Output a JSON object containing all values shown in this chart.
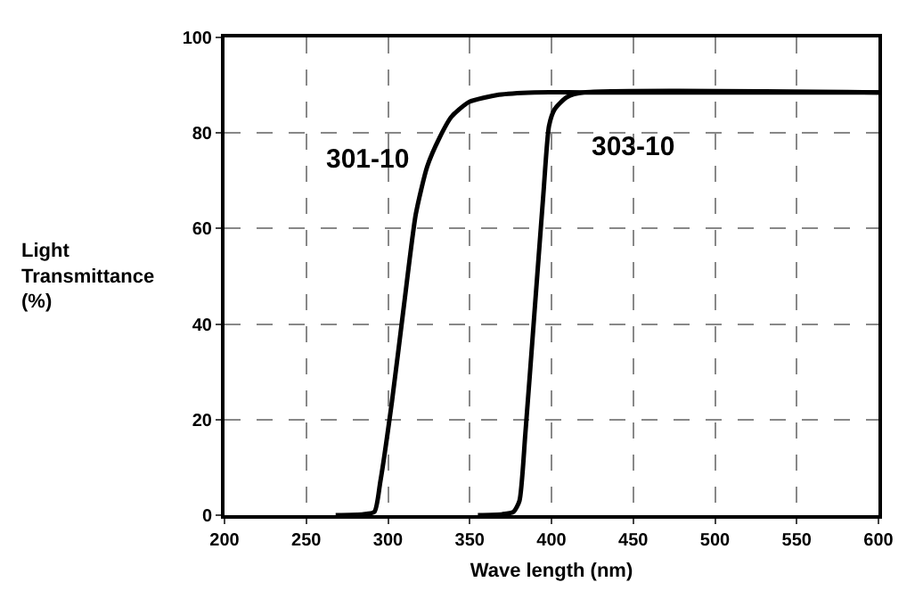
{
  "chart_data": {
    "type": "line",
    "xlabel": "Wave length (nm)",
    "ylabel": "Light\nTransmittance\n(%)",
    "xlim": [
      200,
      600
    ],
    "xticks": [
      200,
      250,
      300,
      350,
      400,
      450,
      500,
      550,
      600
    ],
    "ylim": [
      0,
      100
    ],
    "yticks": [
      0,
      20,
      40,
      60,
      80,
      100
    ],
    "grid": true,
    "legend": false,
    "marker": "none",
    "line_style": "solid",
    "series": [
      {
        "name": "301-10",
        "color": "#000000",
        "x": [
          268,
          285,
          291.7,
          295.3,
          302.5,
          309.8,
          317,
          324,
          331.5,
          338.8,
          349.6,
          367.8,
          389.5,
          420,
          600
        ],
        "values": [
          0,
          0.2,
          0.7,
          7,
          24,
          44,
          63,
          73,
          79,
          83.4,
          86.5,
          88,
          88.5,
          88.5,
          88.5
        ]
      },
      {
        "name": "303-10",
        "color": "#000000",
        "x": [
          355,
          370,
          376.8,
          380.4,
          384,
          389.5,
          395,
          398.5,
          402,
          409.4,
          420,
          600
        ],
        "values": [
          0,
          0.2,
          0.7,
          3,
          17,
          42,
          67,
          81.5,
          85,
          87.5,
          88.5,
          88.5
        ]
      }
    ]
  }
}
